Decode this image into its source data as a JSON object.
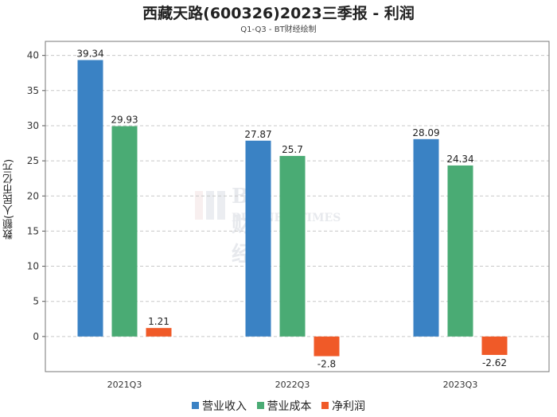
{
  "chart_data": {
    "type": "bar",
    "title": "西藏天路(600326)2023三季报 - 利润",
    "subtitle": "Q1-Q3 - BT财经绘制",
    "ylabel": "数额(人民币亿元)",
    "xlabel": "",
    "categories": [
      "2021Q3",
      "2022Q3",
      "2023Q3"
    ],
    "series": [
      {
        "name": "营业收入",
        "color": "#3a82c4",
        "values": [
          39.34,
          27.87,
          28.09
        ],
        "labels": [
          "39.34",
          "27.87",
          "28.09"
        ]
      },
      {
        "name": "营业成本",
        "color": "#4aab74",
        "values": [
          29.93,
          25.7,
          24.34
        ],
        "labels": [
          "29.93",
          "25.7",
          "24.34"
        ]
      },
      {
        "name": "净利润",
        "color": "#f05a28",
        "values": [
          1.21,
          -2.8,
          -2.62
        ],
        "labels": [
          "1.21",
          "-2.8",
          "-2.62"
        ]
      }
    ],
    "ylim": [
      -5,
      42
    ],
    "yticks": [
      0,
      5,
      10,
      15,
      20,
      25,
      30,
      35,
      40
    ],
    "grid": true,
    "legend": "bottom-center"
  },
  "watermark": {
    "brand": "BT财经",
    "sub": "BUSINESSTIMES"
  }
}
